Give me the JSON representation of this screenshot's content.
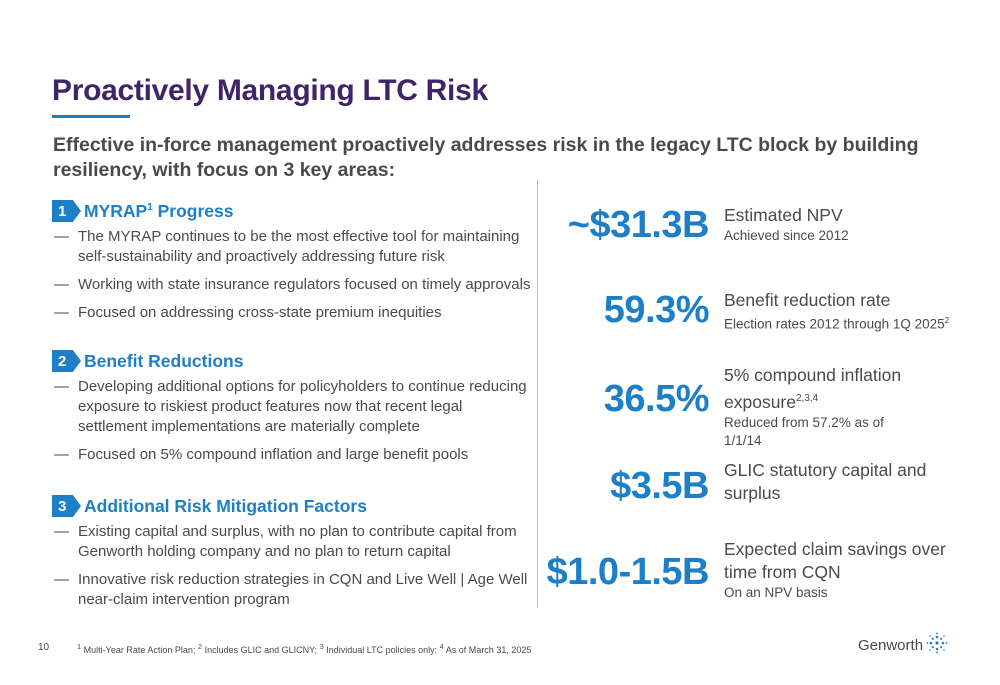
{
  "title": "Proactively Managing LTC Risk",
  "subtitle": "Effective in-force management proactively addresses risk in the legacy LTC block by building resiliency, with focus on 3 key areas:",
  "sections": [
    {
      "number": "1",
      "title": "MYRAP",
      "title_sup": "1",
      "title_suffix": " Progress",
      "bullets": [
        "The MYRAP continues to be the most effective tool for maintaining self-sustainability and proactively addressing future risk",
        "Working with state insurance regulators focused on timely approvals",
        "Focused on addressing cross-state premium inequities"
      ]
    },
    {
      "number": "2",
      "title": "Benefit Reductions",
      "bullets": [
        "Developing additional options for policyholders to continue reducing exposure to riskiest product features now that recent legal settlement implementations are materially complete",
        "Focused on 5% compound inflation and large benefit pools"
      ]
    },
    {
      "number": "3",
      "title": "Additional Risk Mitigation Factors",
      "bullets": [
        "Existing capital and surplus, with no plan to contribute capital from Genworth holding company and no plan to return capital",
        "Innovative risk reduction strategies in CQN and Live Well | Age Well near-claim intervention program"
      ]
    }
  ],
  "bullet_marker": "—",
  "metrics": [
    {
      "value": "~$31.3B",
      "label": "Estimated NPV",
      "label_sup": "",
      "sub": "Achieved since 2012",
      "sub_sup": ""
    },
    {
      "value": "59.3%",
      "label": "Benefit reduction rate",
      "label_sup": "",
      "sub": "Election rates 2012 through 1Q 2025",
      "sub_sup": "2"
    },
    {
      "value": "36.5%",
      "label": "5% compound inflation exposure",
      "label_sup": "2,3,4",
      "sub": "Reduced from 57.2% as of 1/1/14",
      "sub_sup": ""
    },
    {
      "value": "$3.5B",
      "label": "GLIC statutory capital and surplus",
      "label_sup": "",
      "sub": "",
      "sub_sup": ""
    },
    {
      "value": "$1.0-1.5B",
      "label": "Expected claim savings over time from CQN",
      "label_sup": "",
      "sub": "On an NPV basis",
      "sub_sup": ""
    }
  ],
  "footer": {
    "page_number": "10",
    "footnotes": [
      {
        "sup": "1",
        "text": " Multi-Year Rate Action Plan; "
      },
      {
        "sup": "2",
        "text": " Includes GLIC and GLICNY; "
      },
      {
        "sup": "3",
        "text": " Individual LTC policies only; "
      },
      {
        "sup": "4",
        "text": " As of March 31, 2025"
      }
    ],
    "logo_text": "Genworth"
  },
  "colors": {
    "title": "#3f2468",
    "accent": "#1d7fc7",
    "text": "#4a4a4a"
  }
}
